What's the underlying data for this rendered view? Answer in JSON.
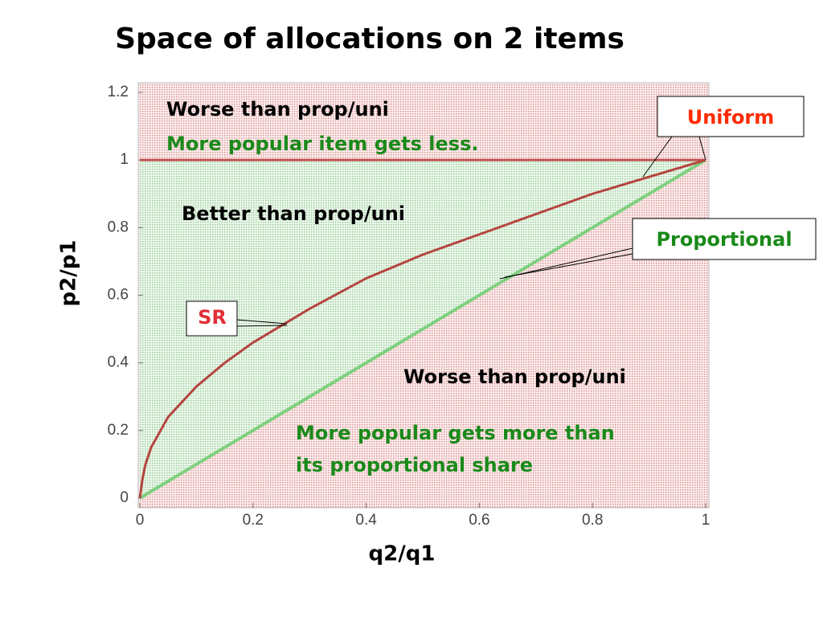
{
  "chart_data": {
    "type": "line",
    "title": "Space of allocations on 2 items",
    "x_label": "q2/q1",
    "y_label": "p2/p1",
    "xlim": [
      0,
      1
    ],
    "ylim": [
      0,
      1.2
    ],
    "xticks": [
      0,
      0.2,
      0.4,
      0.6,
      0.8,
      1
    ],
    "yticks": [
      0,
      0.2,
      0.4,
      0.6,
      0.8,
      1,
      1.2
    ],
    "series": [
      {
        "name": "Uniform",
        "color": "#c0504d",
        "label_color": "#ff2a00",
        "x": [
          0,
          1
        ],
        "values": [
          1,
          1
        ]
      },
      {
        "name": "Proportional",
        "color": "#7fd07f",
        "label_color": "#1a8a1a",
        "x": [
          0,
          1
        ],
        "values": [
          0,
          1
        ]
      },
      {
        "name": "SR",
        "color": "#b5443f",
        "label_color": "#e0303a",
        "x": [
          0,
          0.005,
          0.01,
          0.02,
          0.05,
          0.1,
          0.15,
          0.2,
          0.3,
          0.4,
          0.5,
          0.6,
          0.7,
          0.8,
          0.9,
          1
        ],
        "values": [
          0,
          0.06,
          0.1,
          0.15,
          0.24,
          0.33,
          0.4,
          0.46,
          0.56,
          0.65,
          0.72,
          0.78,
          0.84,
          0.9,
          0.95,
          1
        ]
      }
    ],
    "annotations": [
      {
        "text": "Worse than prop/uni",
        "color": "#000000"
      },
      {
        "text": "More popular item gets less.",
        "color": "#1a8a1a"
      },
      {
        "text": "Better than prop/uni",
        "color": "#000000"
      },
      {
        "text": "Worse than prop/uni",
        "color": "#000000"
      },
      {
        "text": "More popular gets more than",
        "color": "#1a8a1a"
      },
      {
        "text": "its proportional share",
        "color": "#1a8a1a"
      }
    ]
  }
}
